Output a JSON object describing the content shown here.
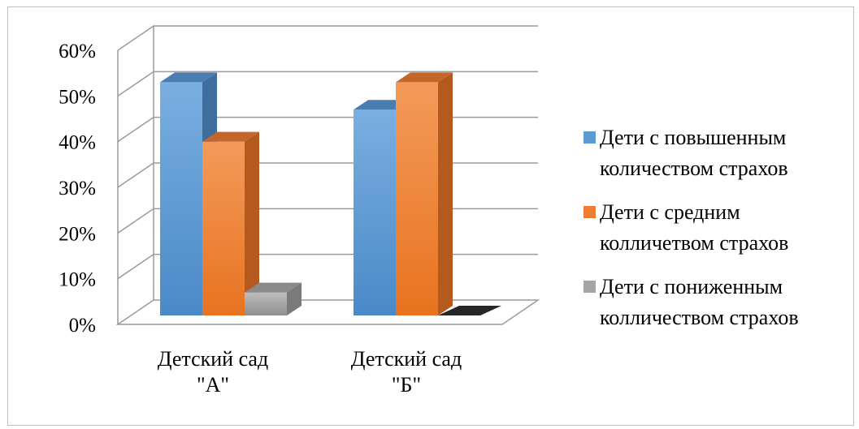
{
  "chart_data": {
    "type": "bar",
    "title": "",
    "xlabel": "",
    "ylabel": "",
    "ylim": [
      0,
      0.6
    ],
    "y_ticks": [
      "0%",
      "10%",
      "20%",
      "30%",
      "40%",
      "50%",
      "60%"
    ],
    "categories": [
      [
        "Детский сад",
        "\"А\""
      ],
      [
        "Детский сад",
        "\"Б\""
      ]
    ],
    "series": [
      {
        "name": [
          "Дети с повышенным",
          "количеством страхов"
        ],
        "values": [
          0.53,
          0.47
        ],
        "color": "#5b9bd5"
      },
      {
        "name": [
          "Дети с средним",
          "колличетвом страхов"
        ],
        "values": [
          0.4,
          0.53
        ],
        "color": "#ed7d31"
      },
      {
        "name": [
          "Дети с пониженным",
          "колличеством страхов"
        ],
        "values": [
          0.07,
          0.0
        ],
        "color": "#a5a5a5"
      }
    ],
    "grid": true,
    "legend_position": "right",
    "style": "3d-clustered-column"
  }
}
